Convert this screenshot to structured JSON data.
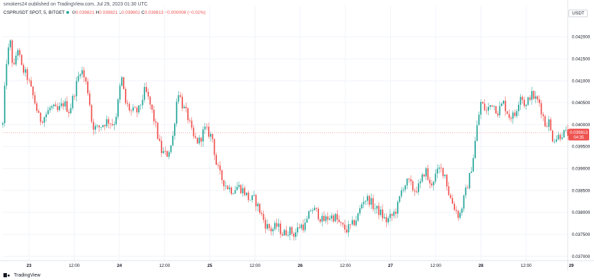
{
  "header": {
    "credit": "smokers24 published on TradingView.com, Jul 29, 2023 01:30 UTC",
    "symbol": "CSPRUSDT SPOT, 5, BITGET",
    "open_label": "O",
    "open": "0.039821",
    "high_label": "H",
    "high": "0.039821",
    "low_label": "L",
    "low": "0.039801",
    "close_label": "C",
    "close": "0.039813",
    "change": "−0.000008 (−0.02%)",
    "currency": "USDT"
  },
  "footer": {
    "brand": "TradingView"
  },
  "colors": {
    "up": "#26a69a",
    "down": "#ef5350",
    "grid": "#f0f3fa",
    "axis_text": "#131722",
    "last_price_line": "#ef5350"
  },
  "price_tag": {
    "price": "0.039813",
    "countdown": "04:35"
  },
  "chart_data": {
    "type": "candlestick",
    "ylim": [
      0.0369,
      0.0424
    ],
    "y_ticks": [
      "0.042000",
      "0.041500",
      "0.041000",
      "0.040500",
      "0.040000",
      "0.039500",
      "0.039000",
      "0.038500",
      "0.038000",
      "0.037500",
      "0.037000"
    ],
    "x_ticks": [
      "23",
      "12:00",
      "24",
      "12:00",
      "25",
      "12:00",
      "26",
      "12:00",
      "27",
      "12:00",
      "28",
      "12:00",
      "29"
    ],
    "x_tick_fracs": [
      0.0465,
      0.1264,
      0.2064,
      0.2864,
      0.3664,
      0.4464,
      0.5264,
      0.6064,
      0.6863,
      0.7663,
      0.8463,
      0.9263,
      1.0063
    ],
    "last_price": 0.039813,
    "path": [
      [
        0.0,
        0.04
      ],
      [
        0.006,
        0.0414
      ],
      [
        0.013,
        0.0419
      ],
      [
        0.019,
        0.0412
      ],
      [
        0.026,
        0.0418
      ],
      [
        0.033,
        0.0413
      ],
      [
        0.043,
        0.0411
      ],
      [
        0.05,
        0.0408
      ],
      [
        0.057,
        0.0405
      ],
      [
        0.065,
        0.0401
      ],
      [
        0.075,
        0.0402
      ],
      [
        0.085,
        0.0404
      ],
      [
        0.097,
        0.0403
      ],
      [
        0.108,
        0.0405
      ],
      [
        0.118,
        0.0403
      ],
      [
        0.128,
        0.0408
      ],
      [
        0.138,
        0.0413
      ],
      [
        0.146,
        0.041
      ],
      [
        0.152,
        0.0407
      ],
      [
        0.158,
        0.04
      ],
      [
        0.166,
        0.0399
      ],
      [
        0.176,
        0.04
      ],
      [
        0.186,
        0.0401
      ],
      [
        0.196,
        0.04
      ],
      [
        0.202,
        0.0403
      ],
      [
        0.21,
        0.0411
      ],
      [
        0.217,
        0.0405
      ],
      [
        0.227,
        0.0403
      ],
      [
        0.24,
        0.0403
      ],
      [
        0.252,
        0.0408
      ],
      [
        0.262,
        0.0404
      ],
      [
        0.27,
        0.04
      ],
      [
        0.28,
        0.0394
      ],
      [
        0.29,
        0.0393
      ],
      [
        0.3,
        0.0396
      ],
      [
        0.31,
        0.0408
      ],
      [
        0.319,
        0.0404
      ],
      [
        0.327,
        0.0402
      ],
      [
        0.337,
        0.0397
      ],
      [
        0.347,
        0.0396
      ],
      [
        0.357,
        0.0399
      ],
      [
        0.365,
        0.0398
      ],
      [
        0.371,
        0.0397
      ],
      [
        0.378,
        0.0391
      ],
      [
        0.386,
        0.0388
      ],
      [
        0.396,
        0.0386
      ],
      [
        0.406,
        0.0385
      ],
      [
        0.416,
        0.0386
      ],
      [
        0.426,
        0.0385
      ],
      [
        0.436,
        0.0383
      ],
      [
        0.446,
        0.0383
      ],
      [
        0.456,
        0.038
      ],
      [
        0.466,
        0.0377
      ],
      [
        0.476,
        0.0376
      ],
      [
        0.486,
        0.0377
      ],
      [
        0.496,
        0.0375
      ],
      [
        0.506,
        0.0376
      ],
      [
        0.516,
        0.0375
      ],
      [
        0.526,
        0.0377
      ],
      [
        0.536,
        0.0377
      ],
      [
        0.546,
        0.0381
      ],
      [
        0.556,
        0.038
      ],
      [
        0.566,
        0.0378
      ],
      [
        0.578,
        0.0379
      ],
      [
        0.588,
        0.0379
      ],
      [
        0.598,
        0.0377
      ],
      [
        0.608,
        0.0376
      ],
      [
        0.618,
        0.0377
      ],
      [
        0.628,
        0.0379
      ],
      [
        0.638,
        0.0383
      ],
      [
        0.648,
        0.0383
      ],
      [
        0.658,
        0.0381
      ],
      [
        0.668,
        0.038
      ],
      [
        0.678,
        0.0378
      ],
      [
        0.688,
        0.0379
      ],
      [
        0.698,
        0.0381
      ],
      [
        0.708,
        0.0386
      ],
      [
        0.718,
        0.0387
      ],
      [
        0.728,
        0.0385
      ],
      [
        0.738,
        0.0386
      ],
      [
        0.748,
        0.039
      ],
      [
        0.756,
        0.0386
      ],
      [
        0.764,
        0.0388
      ],
      [
        0.774,
        0.039
      ],
      [
        0.782,
        0.0389
      ],
      [
        0.79,
        0.0384
      ],
      [
        0.8,
        0.0381
      ],
      [
        0.808,
        0.0379
      ],
      [
        0.816,
        0.0383
      ],
      [
        0.826,
        0.0388
      ],
      [
        0.832,
        0.0392
      ],
      [
        0.84,
        0.04
      ],
      [
        0.846,
        0.0405
      ],
      [
        0.856,
        0.0403
      ],
      [
        0.866,
        0.0405
      ],
      [
        0.876,
        0.0403
      ],
      [
        0.886,
        0.0405
      ],
      [
        0.896,
        0.0402
      ],
      [
        0.906,
        0.0402
      ],
      [
        0.916,
        0.0407
      ],
      [
        0.926,
        0.0404
      ],
      [
        0.934,
        0.0407
      ],
      [
        0.942,
        0.0406
      ],
      [
        0.95,
        0.0405
      ],
      [
        0.96,
        0.04
      ],
      [
        0.966,
        0.0401
      ],
      [
        0.972,
        0.0397
      ],
      [
        0.98,
        0.0397
      ],
      [
        0.99,
        0.0398
      ],
      [
        0.996,
        0.0398
      ],
      [
        1.0,
        0.0398
      ]
    ]
  }
}
